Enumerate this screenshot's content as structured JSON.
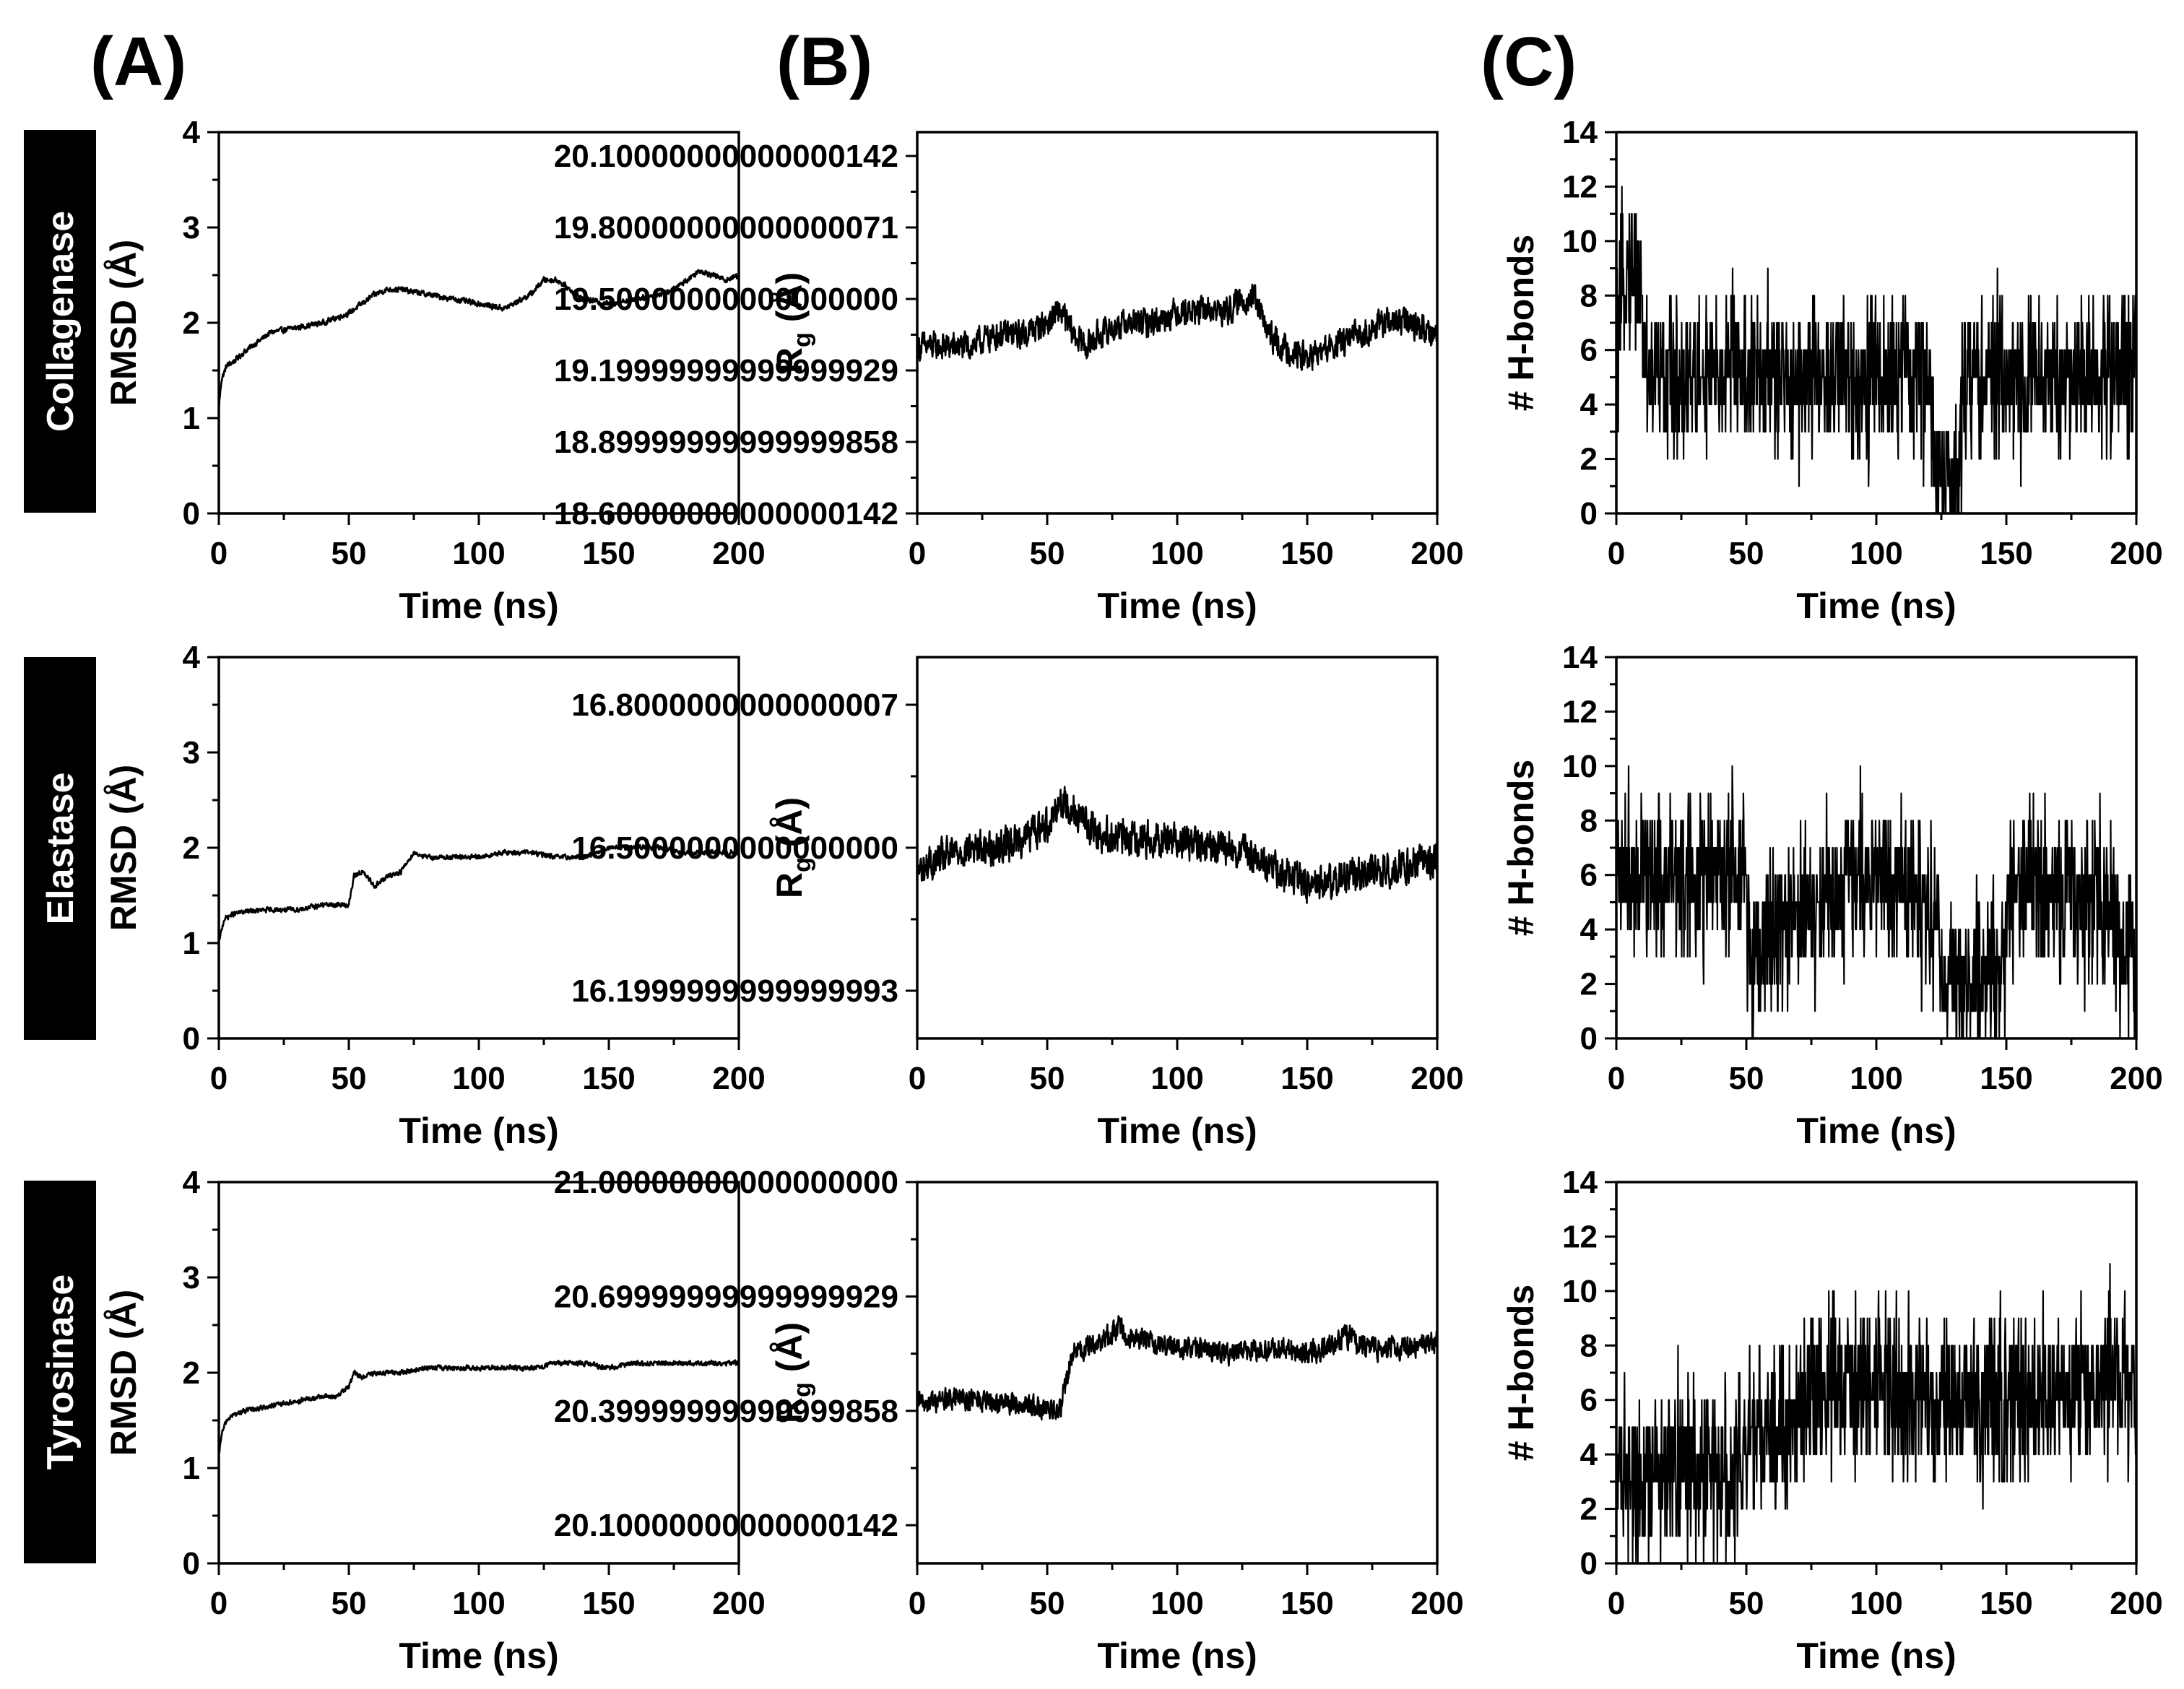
{
  "figure": {
    "panel_labels": [
      "(A)",
      "(B)",
      "(C)"
    ],
    "row_labels": [
      "Collagenase",
      "Elastase",
      "Tyrosinase"
    ]
  },
  "colors": {
    "trace": "#000000",
    "label_bg": "#000000",
    "label_fg": "#ffffff"
  },
  "chart_data": [
    {
      "id": "A-collagenase",
      "type": "line",
      "title": "",
      "xlabel": "Time (ns)",
      "ylabel": "RMSD (Å)",
      "xlim": [
        0,
        200
      ],
      "ylim": [
        0,
        4
      ],
      "xticks": [
        0,
        50,
        100,
        150,
        200
      ],
      "yticks": [
        0,
        1,
        2,
        3,
        4
      ],
      "x": [
        0,
        1,
        3,
        6,
        10,
        15,
        20,
        30,
        40,
        50,
        55,
        60,
        65,
        70,
        80,
        90,
        100,
        110,
        120,
        125,
        130,
        135,
        140,
        150,
        160,
        170,
        175,
        180,
        185,
        190,
        195,
        200
      ],
      "y": [
        1.1,
        1.4,
        1.55,
        1.6,
        1.7,
        1.8,
        1.9,
        1.95,
        2.0,
        2.1,
        2.2,
        2.3,
        2.35,
        2.35,
        2.3,
        2.25,
        2.2,
        2.15,
        2.3,
        2.45,
        2.45,
        2.35,
        2.25,
        2.2,
        2.25,
        2.3,
        2.35,
        2.45,
        2.55,
        2.5,
        2.45,
        2.5
      ],
      "noise": 0.04
    },
    {
      "id": "B-collagenase",
      "type": "line",
      "title": "",
      "xlabel": "Time (ns)",
      "ylabel": "R",
      "ylabel_sub": "g",
      "ylabel_unit": " (Å)",
      "xlim": [
        0,
        200
      ],
      "ylim": [
        18.6,
        20.2
      ],
      "xticks": [
        0,
        50,
        100,
        150,
        200
      ],
      "yticks": [
        18.6,
        18.9,
        19.2,
        19.5,
        19.8,
        20.1
      ],
      "x": [
        0,
        10,
        20,
        30,
        40,
        50,
        55,
        60,
        65,
        70,
        80,
        90,
        100,
        110,
        120,
        125,
        130,
        135,
        140,
        150,
        160,
        170,
        180,
        190,
        200
      ],
      "y": [
        19.3,
        19.3,
        19.3,
        19.35,
        19.35,
        19.4,
        19.45,
        19.35,
        19.3,
        19.35,
        19.4,
        19.4,
        19.45,
        19.45,
        19.45,
        19.5,
        19.5,
        19.35,
        19.3,
        19.25,
        19.3,
        19.35,
        19.4,
        19.4,
        19.35
      ],
      "noise": 0.08
    },
    {
      "id": "C-collagenase",
      "type": "line",
      "title": "",
      "xlabel": "Time (ns)",
      "ylabel": "# H-bonds",
      "xlim": [
        0,
        200
      ],
      "ylim": [
        0,
        14
      ],
      "xticks": [
        0,
        50,
        100,
        150,
        200
      ],
      "yticks": [
        0,
        2,
        4,
        6,
        8,
        10,
        12,
        14
      ],
      "x": [
        0,
        3,
        8,
        10,
        12,
        20,
        40,
        45,
        50,
        60,
        80,
        100,
        110,
        120,
        122,
        125,
        130,
        132,
        134,
        140,
        160,
        180,
        200
      ],
      "y": [
        5,
        9,
        9,
        7,
        5,
        5,
        5,
        6,
        5,
        5,
        5,
        5,
        5,
        5,
        2,
        1,
        1,
        3,
        5,
        5,
        5,
        5,
        5.5
      ],
      "noise": 1.4,
      "integer": true
    },
    {
      "id": "A-elastase",
      "type": "line",
      "title": "",
      "xlabel": "Time (ns)",
      "ylabel": "RMSD (Å)",
      "xlim": [
        0,
        200
      ],
      "ylim": [
        0,
        4
      ],
      "xticks": [
        0,
        50,
        100,
        150,
        200
      ],
      "yticks": [
        0,
        1,
        2,
        3,
        4
      ],
      "x": [
        0,
        2,
        5,
        10,
        20,
        30,
        40,
        50,
        52,
        55,
        60,
        65,
        70,
        75,
        80,
        90,
        100,
        110,
        120,
        130,
        140,
        150,
        160,
        170,
        180,
        190,
        200
      ],
      "y": [
        1.0,
        1.25,
        1.3,
        1.33,
        1.35,
        1.35,
        1.4,
        1.4,
        1.7,
        1.75,
        1.6,
        1.7,
        1.75,
        1.95,
        1.9,
        1.9,
        1.9,
        1.95,
        1.95,
        1.9,
        1.9,
        2.0,
        2.0,
        2.0,
        1.95,
        1.95,
        1.95
      ],
      "noise": 0.035
    },
    {
      "id": "B-elastase",
      "type": "line",
      "title": "",
      "xlabel": "Time (ns)",
      "ylabel": "R",
      "ylabel_sub": "g",
      "ylabel_unit": " (Å)",
      "xlim": [
        0,
        200
      ],
      "ylim": [
        16.1,
        16.9
      ],
      "xticks": [
        0,
        50,
        100,
        150,
        200
      ],
      "yticks": [
        16.2,
        16.5,
        16.8
      ],
      "x": [
        0,
        10,
        20,
        30,
        40,
        50,
        55,
        60,
        65,
        70,
        80,
        90,
        100,
        110,
        120,
        130,
        140,
        150,
        160,
        170,
        180,
        190,
        200
      ],
      "y": [
        16.45,
        16.48,
        16.5,
        16.5,
        16.52,
        16.55,
        16.6,
        16.58,
        16.55,
        16.53,
        16.52,
        16.52,
        16.52,
        16.5,
        16.5,
        16.48,
        16.45,
        16.42,
        16.43,
        16.45,
        16.45,
        16.47,
        16.47
      ],
      "noise": 0.05
    },
    {
      "id": "C-elastase",
      "type": "line",
      "title": "",
      "xlabel": "Time (ns)",
      "ylabel": "# H-bonds",
      "xlim": [
        0,
        200
      ],
      "ylim": [
        0,
        14
      ],
      "xticks": [
        0,
        50,
        100,
        150,
        200
      ],
      "yticks": [
        0,
        2,
        4,
        6,
        8,
        10,
        12,
        14
      ],
      "x": [
        0,
        20,
        40,
        50,
        52,
        55,
        60,
        70,
        80,
        90,
        100,
        110,
        120,
        125,
        130,
        140,
        150,
        152,
        160,
        180,
        190,
        195,
        200
      ],
      "y": [
        6.5,
        6,
        6,
        5.5,
        2,
        3.5,
        4,
        4.5,
        5,
        6,
        6,
        5.5,
        5,
        3,
        2,
        2,
        3,
        5.5,
        5.5,
        5,
        5,
        3,
        2.5
      ],
      "noise": 1.5,
      "integer": true
    },
    {
      "id": "A-tyrosinase",
      "type": "line",
      "title": "",
      "xlabel": "Time (ns)",
      "ylabel": "RMSD (Å)",
      "xlim": [
        0,
        200
      ],
      "ylim": [
        0,
        4
      ],
      "xticks": [
        0,
        50,
        100,
        150,
        200
      ],
      "yticks": [
        0,
        1,
        2,
        3,
        4
      ],
      "x": [
        0,
        1,
        3,
        5,
        10,
        20,
        30,
        40,
        45,
        50,
        52,
        55,
        60,
        70,
        80,
        90,
        100,
        110,
        120,
        130,
        140,
        150,
        160,
        170,
        180,
        190,
        200
      ],
      "y": [
        1.1,
        1.35,
        1.5,
        1.55,
        1.6,
        1.65,
        1.7,
        1.75,
        1.75,
        1.85,
        2.0,
        1.95,
        2.0,
        2.0,
        2.05,
        2.05,
        2.05,
        2.05,
        2.05,
        2.1,
        2.1,
        2.05,
        2.1,
        2.1,
        2.1,
        2.1,
        2.1
      ],
      "noise": 0.035
    },
    {
      "id": "B-tyrosinase",
      "type": "line",
      "title": "",
      "xlabel": "Time (ns)",
      "ylabel": "R",
      "ylabel_sub": "g",
      "ylabel_unit": " (Å)",
      "xlim": [
        0,
        200
      ],
      "ylim": [
        20.0,
        21.0
      ],
      "xticks": [
        0,
        50,
        100,
        150,
        200
      ],
      "yticks": [
        20.1,
        20.4,
        20.7,
        21.0
      ],
      "x": [
        0,
        10,
        20,
        30,
        40,
        50,
        55,
        58,
        60,
        70,
        78,
        80,
        90,
        100,
        110,
        120,
        130,
        140,
        150,
        160,
        165,
        170,
        180,
        190,
        200
      ],
      "y": [
        20.42,
        20.43,
        20.43,
        20.42,
        20.42,
        20.4,
        20.4,
        20.5,
        20.55,
        20.58,
        20.62,
        20.6,
        20.58,
        20.57,
        20.56,
        20.55,
        20.56,
        20.57,
        20.55,
        20.57,
        20.6,
        20.57,
        20.56,
        20.57,
        20.58
      ],
      "noise": 0.04
    },
    {
      "id": "C-tyrosinase",
      "type": "line",
      "title": "",
      "xlabel": "Time (ns)",
      "ylabel": "# H-bonds",
      "xlim": [
        0,
        200
      ],
      "ylim": [
        0,
        14
      ],
      "xticks": [
        0,
        50,
        100,
        150,
        200
      ],
      "yticks": [
        0,
        2,
        4,
        6,
        8,
        10,
        12,
        14
      ],
      "x": [
        0,
        20,
        40,
        50,
        52,
        60,
        65,
        70,
        80,
        100,
        120,
        140,
        160,
        180,
        200
      ],
      "y": [
        3.5,
        3.5,
        3.5,
        4,
        5,
        4.5,
        5,
        6,
        6.5,
        6.5,
        6,
        6,
        6,
        6.5,
        6.5
      ],
      "noise": 1.5,
      "integer": true
    }
  ]
}
